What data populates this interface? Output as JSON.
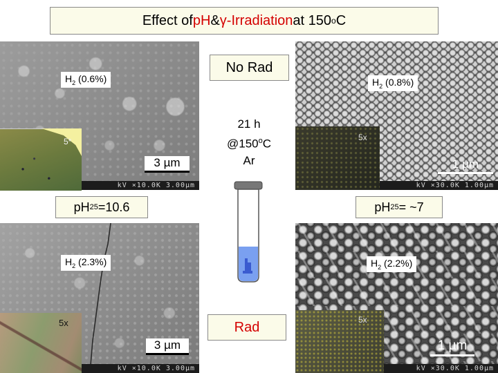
{
  "title": {
    "prefix": "Effect of ",
    "ph": "pH",
    "amp": " & ",
    "gamma": "γ-Irradiation",
    "suffix_pre": " at 150",
    "sup": "o",
    "suffix_post": "C"
  },
  "labels": {
    "no_rad": "No Rad",
    "rad": "Rad",
    "ph_left_pre": "pH",
    "ph_left_sub": "25",
    "ph_left_post": "=10.6",
    "ph_right_pre": "pH",
    "ph_right_sub": "25",
    "ph_right_post": "= ~7"
  },
  "center": {
    "line1": "21 h",
    "line2_pre": "@150",
    "line2_sup": "o",
    "line2_post": "C",
    "line3": "Ar"
  },
  "panels": {
    "top_left": {
      "h2_pre": "H",
      "h2_sub": "2",
      "h2_post": " (0.6%)",
      "mag": "5*",
      "scale": "3 µm",
      "sem_bar": "kV ×10.0K 3.00µm"
    },
    "top_right": {
      "h2_pre": "H",
      "h2_sub": "2",
      "h2_post": " (0.8%)",
      "mag": "5x",
      "scale": "1 µm",
      "sem_bar": "kV ×30.0K 1.00µm"
    },
    "bottom_left": {
      "h2_pre": "H",
      "h2_sub": "2",
      "h2_post": " (2.3%)",
      "mag": "5x",
      "scale": "3 µm",
      "sem_bar": "kV ×10.0K 3.00µm"
    },
    "bottom_right": {
      "h2_pre": "H",
      "h2_sub": "2",
      "h2_post": " (2.2%)",
      "mag": "5x",
      "scale": "1 µm",
      "sem_bar": "kV ×30.0K 1.00µm"
    }
  },
  "colors": {
    "accent_red": "#d40000",
    "label_bg": "#fbfbe9",
    "vial_water": "#7aa0f0"
  }
}
